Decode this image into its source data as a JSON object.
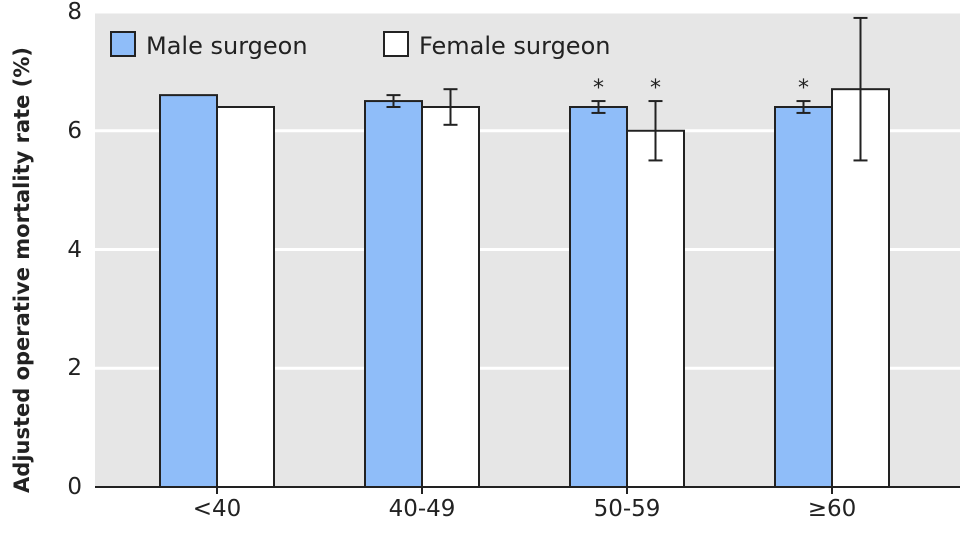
{
  "chart_data": {
    "type": "bar",
    "title": "",
    "xlabel": "",
    "ylabel": "Adjusted operative mortality rate (%)",
    "ylim": [
      0,
      8
    ],
    "yticks": [
      "0",
      "2",
      "4",
      "6",
      "8"
    ],
    "grid": true,
    "legend_position": "top-left",
    "categories": [
      "<40",
      "40-49",
      "50-59",
      "≥60"
    ],
    "series": [
      {
        "name": "Male surgeon",
        "color": "#8fbdf9",
        "values": [
          6.6,
          6.5,
          6.4,
          6.4
        ],
        "error_low": [
          null,
          6.4,
          6.3,
          6.3
        ],
        "error_high": [
          null,
          6.6,
          6.5,
          6.5
        ],
        "significance": [
          "",
          "",
          "*",
          "*"
        ]
      },
      {
        "name": "Female surgeon",
        "color": "#ffffff",
        "values": [
          6.4,
          6.4,
          6.0,
          6.7
        ],
        "error_low": [
          null,
          6.1,
          5.5,
          5.5
        ],
        "error_high": [
          null,
          6.7,
          6.5,
          7.9
        ],
        "significance": [
          "",
          "",
          "*",
          ""
        ]
      }
    ]
  }
}
